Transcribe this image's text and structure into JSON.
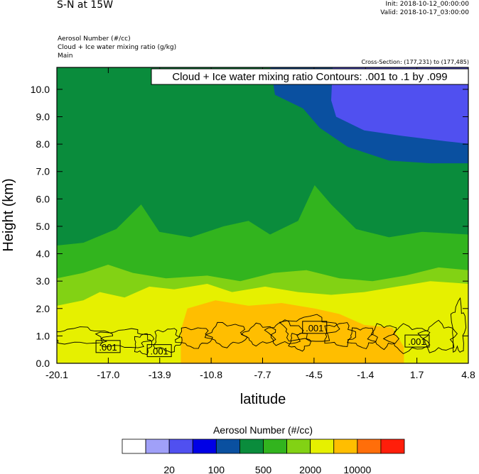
{
  "header": {
    "title": "S-N at 15W",
    "init": "Init: 2018-10-12_00:00:00",
    "valid": "Valid: 2018-10-17_03:00:00",
    "fields": [
      "Aerosol Number   (#/cc)",
      "Cloud + Ice water mixing ratio   (g/kg)",
      "Main"
    ],
    "cross_section": "Cross-Section: (177,231) to (177,485)"
  },
  "chart_data": {
    "type": "heatmap",
    "xlabel": "latitude",
    "ylabel": "Height (km)",
    "xlim": [
      -20.1,
      4.8
    ],
    "ylim": [
      0.0,
      10.8
    ],
    "xticks": [
      "-20.1",
      "-17.0",
      "-13.9",
      "-10.8",
      "-7.7",
      "-4.5",
      "-1.4",
      "1.7",
      "4.8"
    ],
    "yticks": [
      "0.0",
      "1.0",
      "2.0",
      "3.0",
      "4.0",
      "5.0",
      "6.0",
      "7.0",
      "8.0",
      "9.0",
      "10.0"
    ],
    "contour_title": "Cloud + Ice water mixing ratio Contours: .001 to .1 by .099",
    "contour_labels": [
      {
        "x": -17.0,
        "y": 0.6,
        "text": ".001"
      },
      {
        "x": -13.9,
        "y": 0.45,
        "text": ".001"
      },
      {
        "x": -4.5,
        "y": 1.3,
        "text": ".001"
      },
      {
        "x": 1.7,
        "y": 0.8,
        "text": ".001"
      }
    ],
    "colorbar": {
      "title": "Aerosol Number  (#/cc)",
      "colors": [
        "#ffffff",
        "#a0a0f8",
        "#5050f0",
        "#0000e6",
        "#0a50a0",
        "#0a8c3c",
        "#32b41e",
        "#82d214",
        "#e6f000",
        "#ffbe00",
        "#ff6e0a",
        "#ff1e0a"
      ],
      "labels": [
        "20",
        "100",
        "500",
        "2000",
        "10000"
      ]
    },
    "fill": {
      "background": "#0a8c3c",
      "layers": [
        {
          "color": "#0a50a0",
          "region": "upper right, x > -7.5, y > 7.2"
        },
        {
          "color": "#5050f0",
          "region": "top right, x > -4.0, y > 8.0"
        },
        {
          "color": "#32b41e",
          "region": "below about 4.5 km"
        },
        {
          "color": "#82d214",
          "region": "below about 3.0 km"
        },
        {
          "color": "#e6f000",
          "region": "below about 2.3 km"
        },
        {
          "color": "#ffbe00",
          "region": "x from -12.5 to 1.0, below about 2.2 km"
        }
      ]
    }
  }
}
